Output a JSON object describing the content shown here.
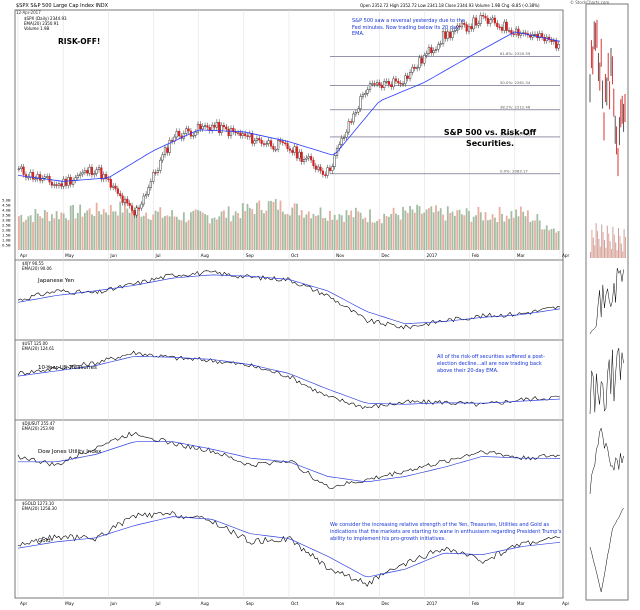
{
  "header": {
    "symbol_line": "$SPX S&P 500 Large Cap Index INDX",
    "date_line": "12-Apr-2017",
    "quote_line": "Open 2352.72   High 2352.72   Low 2341.18   Close 2344.93   Volume 1.9B   Chg -8.85 (-0.38%)",
    "watermark": "© StockCharts.com"
  },
  "main_legend": [
    "$SPX (Daily) 2344.93",
    "EMA(20) 2350.91",
    "Volume 1.9B"
  ],
  "annotations": {
    "risk_off": "RISK-OFF!",
    "reversal": "S&P 500 saw a reversal yesterday due to the Fed minutes. Now trading below its 20 day EMA.",
    "title": "S&P 500 vs. Risk-Off Securities.",
    "riskoff_note": "All of the risk-off securities suffered a post-election decline...all are now trading back above their 20-day EMA.",
    "gold_note": "We consider the increasing relative strength of the Yen, Treasuries, Utilities and Gold as indications that the markets are starting to wane in enthusiasm regarding President Trump's ability to implement his pro-growth initiatives."
  },
  "fib_labels": [
    "61.8%: 2320.59",
    "50.0%: 2261.34",
    "38.2%: 2212.46",
    "23.6%: 2157.61",
    "0.0%: 2083.17"
  ],
  "volume_ticks": [
    "5.0B",
    "4.5B",
    "4.0B",
    "3.5B",
    "3.0B",
    "2.5B",
    "2.0B",
    "1.5B",
    "1.0B",
    "0.5B"
  ],
  "panel_titles": {
    "yen": "Japanese Yen",
    "treasuries": "10-Year US Treasuries",
    "utilities": "Dow Jones Utility Index",
    "gold": "Gold"
  },
  "panel_legends": {
    "yen": [
      "$XJY 90.55",
      "EMA(20) 90.06"
    ],
    "treasuries": [
      "$UST 125.00",
      "EMA(20) 124.61"
    ],
    "utilities": [
      "$DJUSUT 255.47",
      "EMA(20) 253.90"
    ],
    "gold": [
      "$GOLD 1273.10",
      "EMA(20) 1258.30"
    ]
  },
  "x_axis_labels": [
    "Apr",
    "May",
    "Jun",
    "Jul",
    "Aug",
    "Sep",
    "Oct",
    "Nov",
    "Dec",
    "2017",
    "Feb",
    "Mar",
    "Apr"
  ],
  "chart_data": {
    "type": "line",
    "x_start": "2016-04-18",
    "x_end": "2017-04-12",
    "series": [
      {
        "name": "$SPX",
        "kind": "candlestick",
        "x": [
          "2016-04",
          "2016-05",
          "2016-06",
          "2016-06-27",
          "2016-07",
          "2016-08",
          "2016-09",
          "2016-10",
          "2016-11-04",
          "2016-12",
          "2017-01",
          "2017-02",
          "2017-03-01",
          "2017-03",
          "2017-04-12"
        ],
        "values": [
          2090,
          2060,
          2095,
          2000,
          2160,
          2180,
          2155,
          2135,
          2085,
          2255,
          2275,
          2360,
          2395,
          2370,
          2344.93
        ]
      },
      {
        "name": "EMA(20)",
        "x": [
          "2016-04",
          "2016-05",
          "2016-06",
          "2016-07",
          "2016-08",
          "2016-09",
          "2016-10",
          "2016-11",
          "2016-12",
          "2017-01",
          "2017-02",
          "2017-03",
          "2017-04-12"
        ],
        "values": [
          2080,
          2068,
          2075,
          2130,
          2172,
          2168,
          2148,
          2120,
          2230,
          2268,
          2320,
          2370,
          2350.91
        ]
      },
      {
        "name": "Volume",
        "unit": "B",
        "values": [
          3.4,
          3.6,
          3.9,
          4.2,
          3.5,
          3.3,
          3.7,
          4.6,
          3.9,
          3.6,
          3.4,
          3.8,
          3.6,
          3.5,
          3.7,
          1.9
        ]
      }
    ],
    "fib_levels": [
      2320.59,
      2261.34,
      2212.46,
      2157.61,
      2083.17
    ],
    "panels": [
      {
        "name": "$XJY",
        "values": [
          92.0,
          94.0,
          93.5,
          95.5,
          97.5,
          98.0,
          97.0,
          96.5,
          93.0,
          87.5,
          86.0,
          87.5,
          88.5,
          89.0,
          90.5
        ],
        "ema": [
          91.5,
          93.0,
          94.0,
          95.2,
          96.8,
          97.5,
          97.2,
          96.5,
          94.0,
          89.5,
          86.8,
          87.3,
          88.2,
          88.8,
          90.06
        ]
      },
      {
        "name": "$UST",
        "values": [
          129.5,
          130.5,
          131.5,
          133.5,
          132.5,
          132.0,
          131.0,
          129.0,
          125.0,
          123.0,
          124.0,
          124.0,
          123.5,
          124.5,
          125.0
        ],
        "ema": [
          129.0,
          130.0,
          131.0,
          132.8,
          132.6,
          132.2,
          131.2,
          129.5,
          126.5,
          123.8,
          123.6,
          123.9,
          123.8,
          124.2,
          124.61
        ]
      },
      {
        "name": "$DJUSUT",
        "values": [
          255.0,
          250.0,
          260.0,
          268.0,
          262.0,
          258.0,
          250.0,
          253.0,
          238.0,
          242.0,
          247.0,
          252.0,
          258.0,
          254.0,
          255.47
        ],
        "ema": [
          252.0,
          252.0,
          256.0,
          263.0,
          263.0,
          259.0,
          254.0,
          252.0,
          244.0,
          241.0,
          244.0,
          249.0,
          255.0,
          254.0,
          253.9
        ]
      },
      {
        "name": "$GOLD",
        "values": [
          1250,
          1275,
          1270,
          1340,
          1345,
          1325,
          1260,
          1270,
          1180,
          1130,
          1190,
          1240,
          1200,
          1255,
          1273.1
        ],
        "ema": [
          1240,
          1260,
          1272,
          1310,
          1338,
          1330,
          1285,
          1270,
          1215,
          1150,
          1175,
          1225,
          1220,
          1245,
          1258.3
        ]
      }
    ]
  }
}
